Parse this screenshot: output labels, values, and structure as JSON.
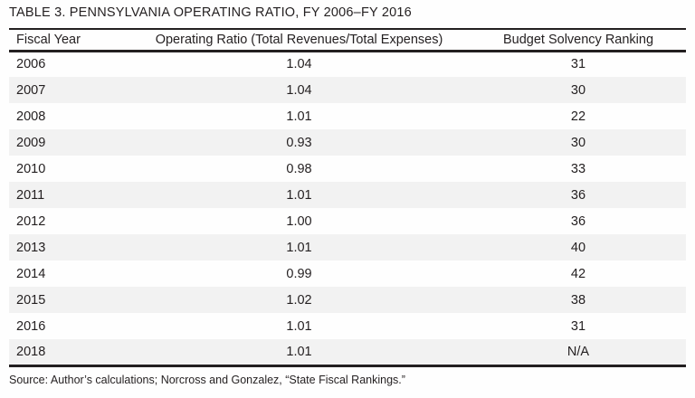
{
  "table": {
    "title": "TABLE 3. PENNSYLVANIA OPERATING RATIO, FY 2006–FY 2016",
    "columns": [
      "Fiscal Year",
      "Operating Ratio (Total Revenues/Total Expenses)",
      "Budget Solvency Ranking"
    ],
    "rows": [
      [
        "2006",
        "1.04",
        "31"
      ],
      [
        "2007",
        "1.04",
        "30"
      ],
      [
        "2008",
        "1.01",
        "22"
      ],
      [
        "2009",
        "0.93",
        "30"
      ],
      [
        "2010",
        "0.98",
        "33"
      ],
      [
        "2011",
        "1.01",
        "36"
      ],
      [
        "2012",
        "1.00",
        "36"
      ],
      [
        "2013",
        "1.01",
        "40"
      ],
      [
        "2014",
        "0.99",
        "42"
      ],
      [
        "2015",
        "1.02",
        "38"
      ],
      [
        "2016",
        "1.01",
        "31"
      ],
      [
        "2018",
        "1.01",
        "N/A"
      ]
    ],
    "source": "Source: Author’s calculations; Norcross and Gonzalez, “State Fiscal Rankings.”"
  },
  "chart_data": {
    "type": "table",
    "title": "TABLE 3. PENNSYLVANIA OPERATING RATIO, FY 2006–FY 2016",
    "columns": [
      "Fiscal Year",
      "Operating Ratio (Total Revenues/Total Expenses)",
      "Budget Solvency Ranking"
    ],
    "fiscal_years": [
      2006,
      2007,
      2008,
      2009,
      2010,
      2011,
      2012,
      2013,
      2014,
      2015,
      2016,
      2018
    ],
    "operating_ratio": [
      1.04,
      1.04,
      1.01,
      0.93,
      0.98,
      1.01,
      1.0,
      1.01,
      0.99,
      1.02,
      1.01,
      1.01
    ],
    "budget_solvency_ranking": [
      31,
      30,
      22,
      30,
      33,
      36,
      36,
      40,
      42,
      38,
      31,
      null
    ]
  },
  "colors": {
    "row_stripe": "#f2f2f2",
    "text": "#231f20",
    "rule": "#231f20"
  }
}
